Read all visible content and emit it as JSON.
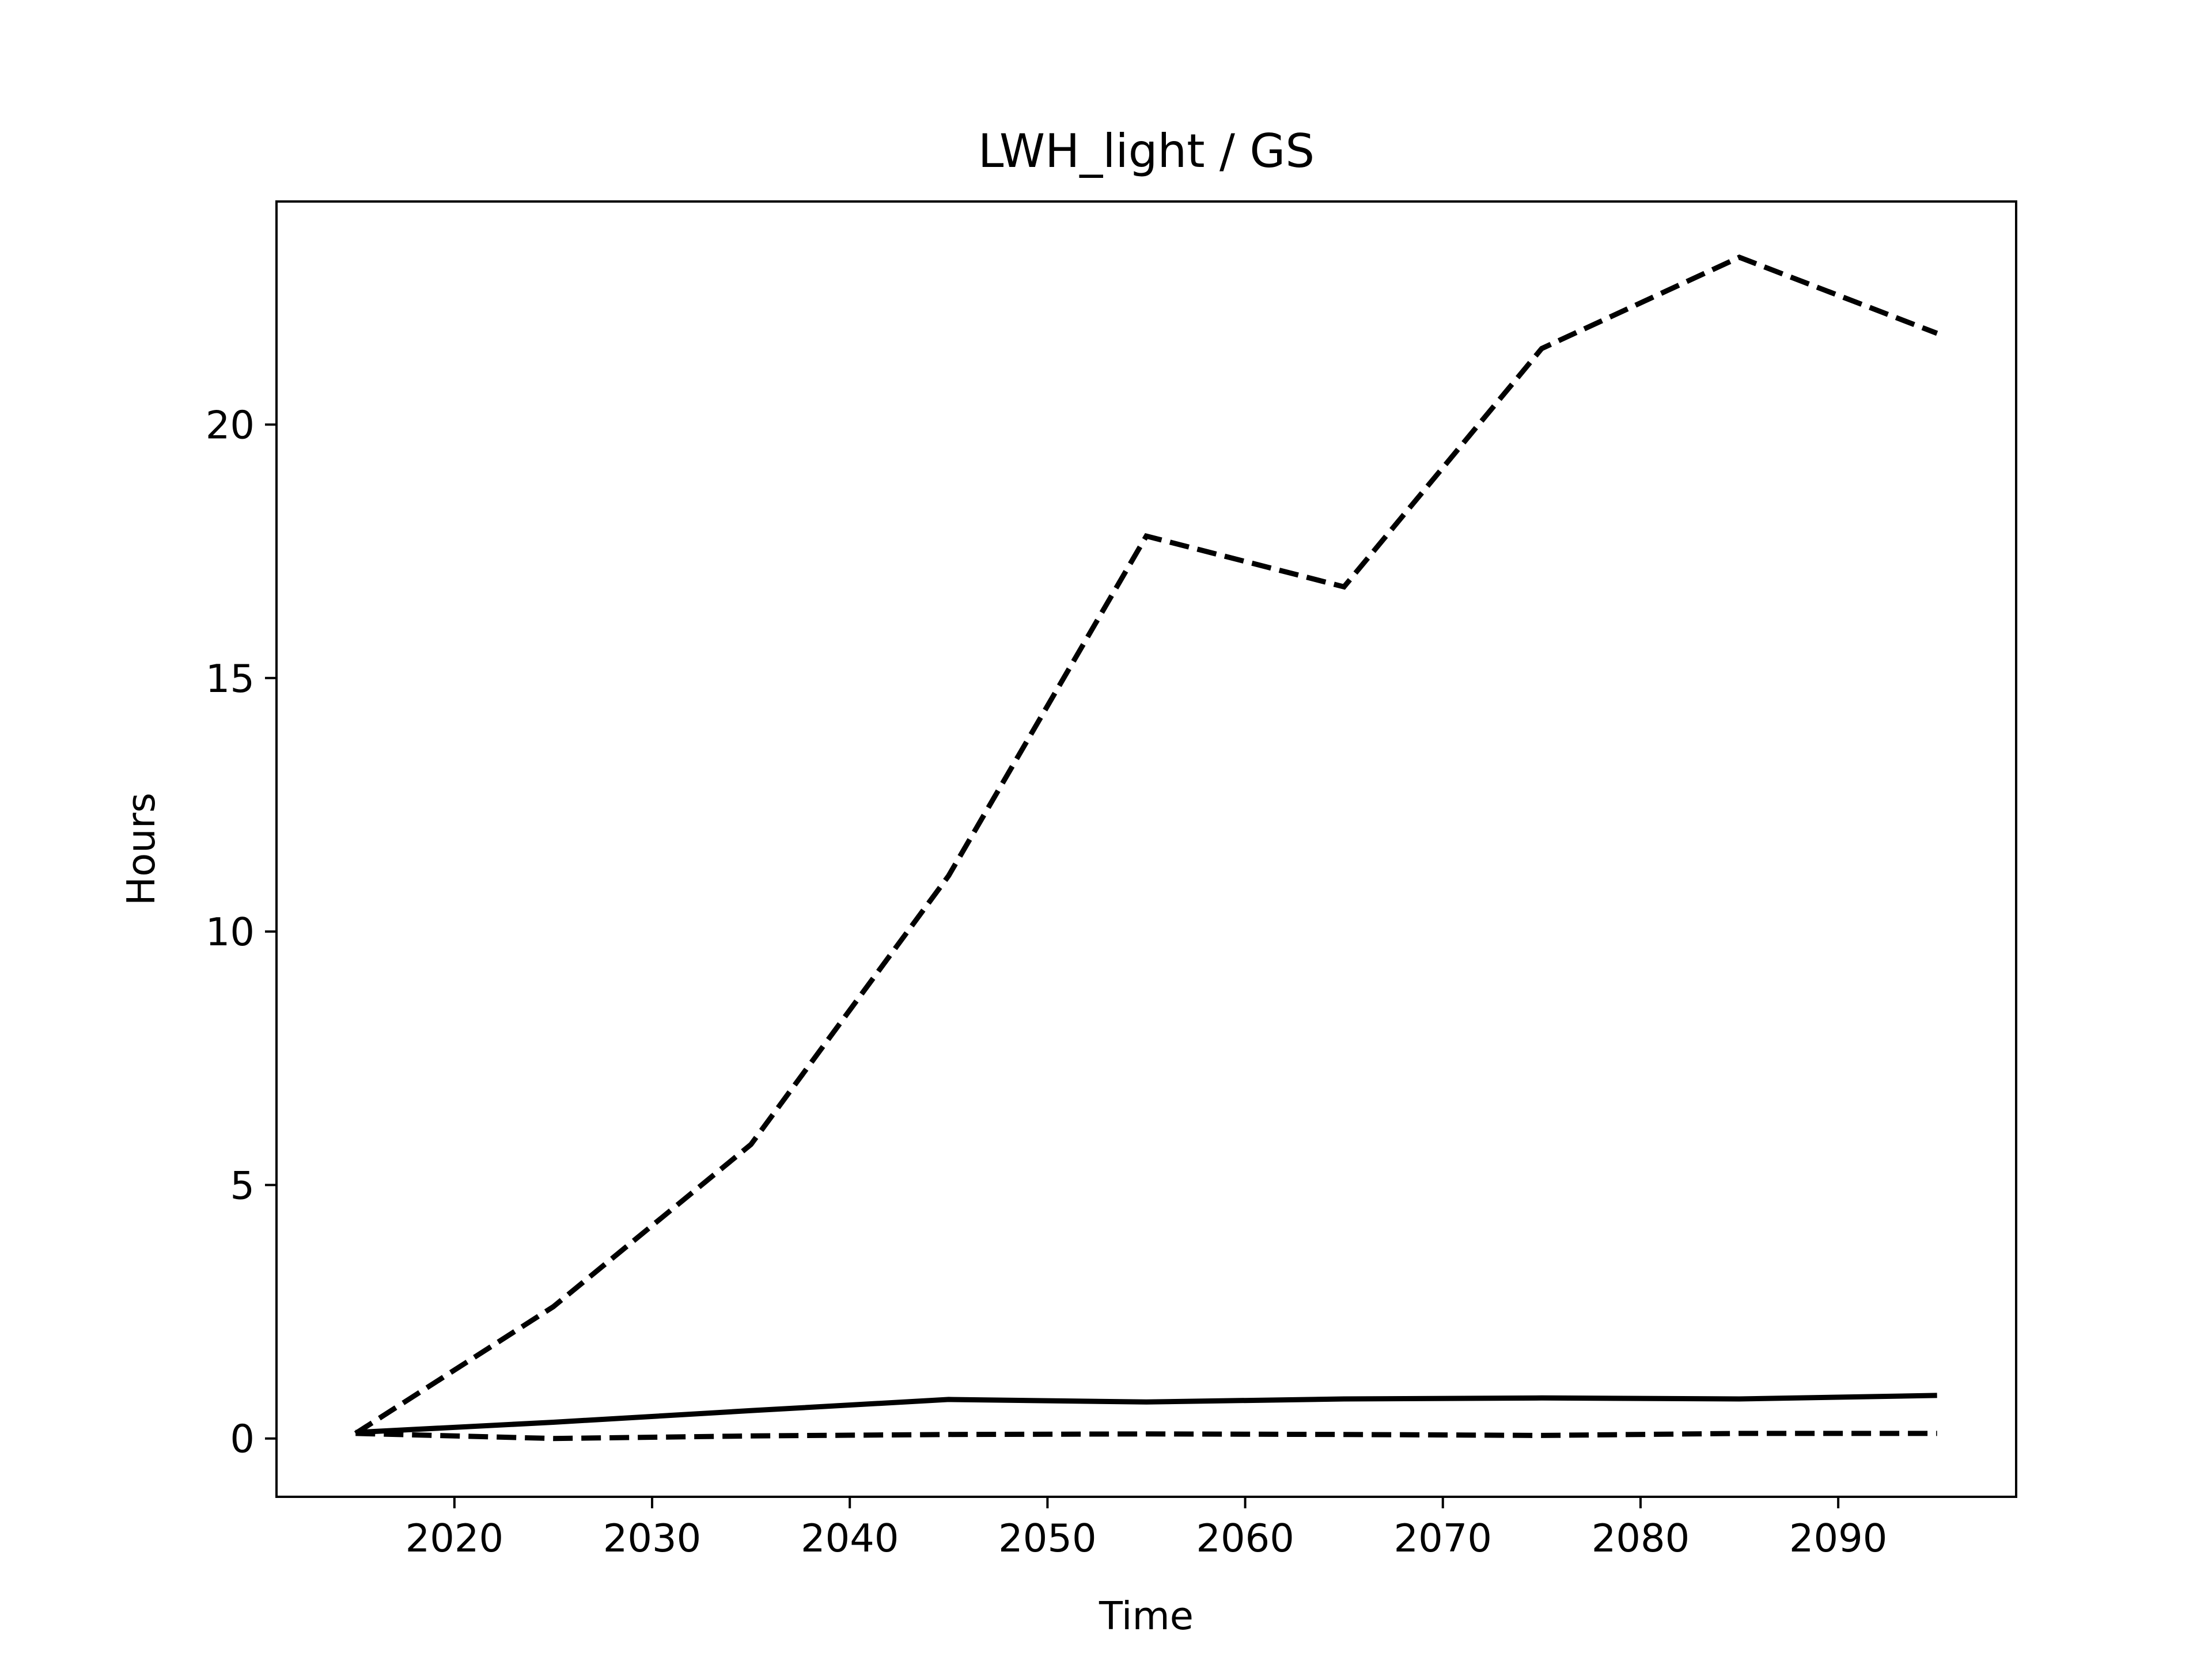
{
  "chart_data": {
    "type": "line",
    "title": "LWH_light / GS",
    "xlabel": "Time",
    "ylabel": "Hours",
    "xlim": [
      2011,
      2099
    ],
    "ylim": [
      -1.15,
      24.4
    ],
    "xticks": [
      2020,
      2030,
      2040,
      2050,
      2060,
      2070,
      2080,
      2090
    ],
    "yticks": [
      0,
      5,
      10,
      15,
      20
    ],
    "grid": false,
    "legend": "none",
    "x": [
      2015,
      2025,
      2035,
      2045,
      2055,
      2065,
      2075,
      2085,
      2095
    ],
    "series": [
      {
        "style": "dashed",
        "color": "#000000",
        "values": [
          0.1,
          2.6,
          5.8,
          11.1,
          17.8,
          16.8,
          21.5,
          23.3,
          21.8
        ]
      },
      {
        "style": "solid",
        "color": "#000000",
        "values": [
          0.12,
          0.32,
          0.55,
          0.77,
          0.72,
          0.78,
          0.8,
          0.78,
          0.85
        ]
      },
      {
        "style": "dashed",
        "color": "#000000",
        "values": [
          0.1,
          0.0,
          0.05,
          0.08,
          0.09,
          0.08,
          0.06,
          0.1,
          0.1
        ]
      }
    ]
  }
}
